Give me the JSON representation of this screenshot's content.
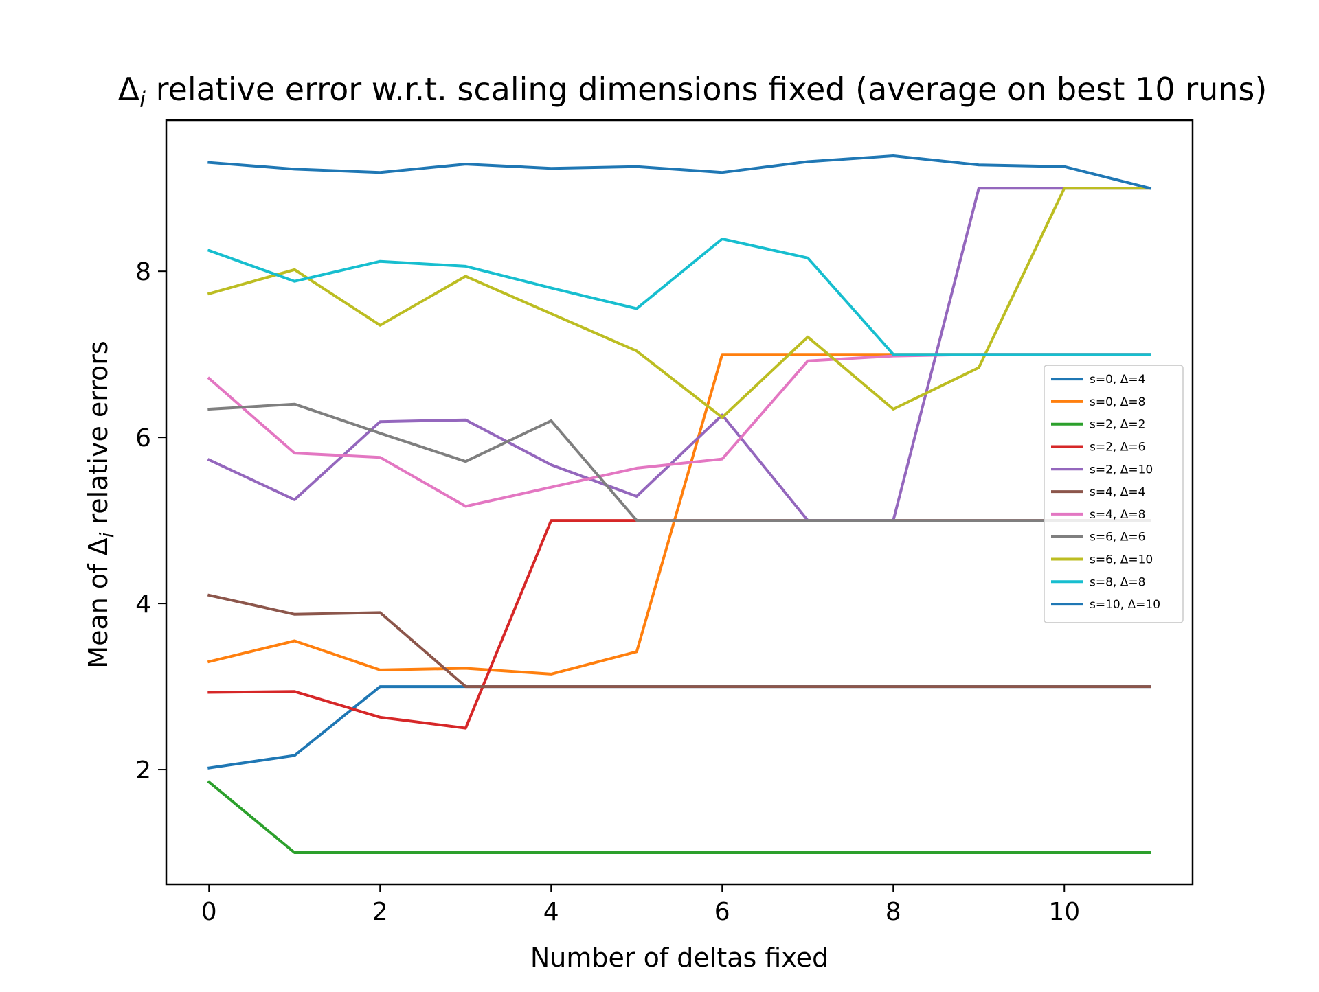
{
  "chart_data": {
    "type": "line",
    "title": "Δ_i relative error w.r.t. scaling dimensions fixed (average on best 10 runs)",
    "title_parts": {
      "pre": "Δ",
      "sub": "i",
      "post": " relative error w.r.t. scaling dimensions fixed (average on best 10 runs)"
    },
    "xlabel": "Number of deltas fixed",
    "ylabel": "Mean of Δ_i relative errors",
    "ylabel_parts": {
      "pre": "Mean of Δ",
      "sub": "i",
      "post": " relative errors"
    },
    "xlim": [
      -0.5,
      11.5
    ],
    "ylim": [
      0.62,
      9.82
    ],
    "xticks": [
      0,
      2,
      4,
      6,
      8,
      10
    ],
    "yticks": [
      2,
      4,
      6,
      8
    ],
    "grid": false,
    "legend_position": "center-right",
    "x": [
      0,
      1,
      2,
      3,
      4,
      5,
      6,
      7,
      8,
      9,
      10,
      11
    ],
    "series": [
      {
        "name": "s=0, Δ=4",
        "color": "#1f77b4",
        "values": [
          2.02,
          2.17,
          3.0,
          3.0,
          3.0,
          3.0,
          3.0,
          3.0,
          3.0,
          3.0,
          3.0,
          3.0
        ]
      },
      {
        "name": "s=0, Δ=8",
        "color": "#ff7f0e",
        "values": [
          3.3,
          3.55,
          3.2,
          3.22,
          3.15,
          3.42,
          7.0,
          7.0,
          7.0,
          7.0,
          7.0,
          7.0
        ]
      },
      {
        "name": "s=2, Δ=2",
        "color": "#2ca02c",
        "values": [
          1.85,
          1.0,
          1.0,
          1.0,
          1.0,
          1.0,
          1.0,
          1.0,
          1.0,
          1.0,
          1.0,
          1.0
        ]
      },
      {
        "name": "s=2, Δ=6",
        "color": "#d62728",
        "values": [
          2.93,
          2.94,
          2.63,
          2.5,
          5.0,
          5.0,
          5.0,
          5.0,
          5.0,
          5.0,
          5.0,
          5.0
        ]
      },
      {
        "name": "s=2, Δ=10",
        "color": "#9467bd",
        "values": [
          5.73,
          5.25,
          6.19,
          6.21,
          5.67,
          5.29,
          6.27,
          5.0,
          5.0,
          9.0,
          9.0,
          9.0
        ]
      },
      {
        "name": "s=4, Δ=4",
        "color": "#8c564b",
        "values": [
          4.1,
          3.87,
          3.89,
          3.0,
          3.0,
          3.0,
          3.0,
          3.0,
          3.0,
          3.0,
          3.0,
          3.0
        ]
      },
      {
        "name": "s=4, Δ=8",
        "color": "#e377c2",
        "values": [
          6.71,
          5.81,
          5.76,
          5.17,
          5.4,
          5.63,
          5.74,
          6.92,
          6.98,
          7.0,
          7.0,
          7.0
        ]
      },
      {
        "name": "s=6, Δ=6",
        "color": "#7f7f7f",
        "values": [
          6.34,
          6.4,
          6.05,
          5.71,
          6.2,
          5.0,
          5.0,
          5.0,
          5.0,
          5.0,
          5.0,
          5.0
        ]
      },
      {
        "name": "s=6, Δ=10",
        "color": "#bcbd22",
        "values": [
          7.73,
          8.02,
          7.35,
          7.94,
          7.49,
          7.04,
          6.24,
          7.21,
          6.34,
          6.84,
          9.0,
          9.0
        ]
      },
      {
        "name": "s=8, Δ=8",
        "color": "#17becf",
        "values": [
          8.25,
          7.88,
          8.12,
          8.06,
          7.8,
          7.55,
          8.39,
          8.16,
          7.0,
          7.0,
          7.0,
          7.0
        ]
      },
      {
        "name": "s=10, Δ=10",
        "color": "#1f77b4",
        "values": [
          9.31,
          9.23,
          9.19,
          9.29,
          9.24,
          9.26,
          9.19,
          9.32,
          9.39,
          9.28,
          9.26,
          9.0
        ]
      }
    ]
  }
}
